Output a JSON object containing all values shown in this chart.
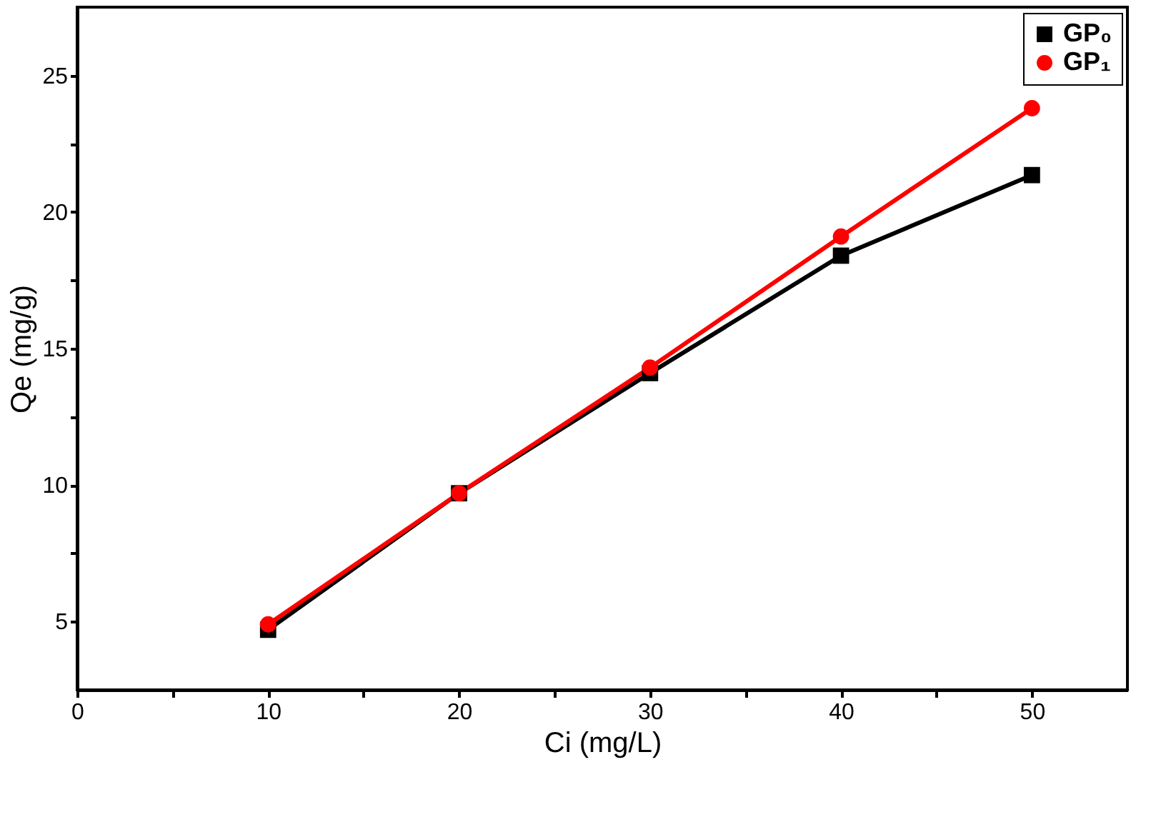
{
  "chart_data": {
    "type": "line",
    "xlabel": "Ci (mg/L)",
    "ylabel": "Qe (mg/g)",
    "x": [
      10,
      20,
      30,
      40,
      50
    ],
    "series": [
      {
        "name": "GP₀",
        "color": "#000000",
        "marker": "square",
        "values": [
          4.7,
          9.7,
          14.1,
          18.4,
          21.35
        ]
      },
      {
        "name": "GP₁",
        "color": "#ff0000",
        "marker": "circle",
        "values": [
          4.9,
          9.7,
          14.3,
          19.1,
          23.8
        ]
      }
    ],
    "xlim": [
      0,
      55
    ],
    "xticks": [
      0,
      {
        "value": 5,
        "label": null
      },
      10,
      {
        "value": 15,
        "label": null
      },
      20,
      {
        "value": 25,
        "label": null
      },
      30,
      {
        "value": 35,
        "label": null
      },
      40,
      {
        "value": 45,
        "label": null
      },
      50
    ],
    "ylim": [
      2.5,
      27.5
    ],
    "yticks": [
      5,
      {
        "value": 7.5,
        "label": null
      },
      10,
      {
        "value": 12.5,
        "label": null
      },
      15,
      {
        "value": 17.5,
        "label": null
      },
      20,
      {
        "value": 22.5,
        "label": null
      },
      25
    ],
    "grid": false,
    "legend": "top right",
    "line_style": "solid"
  }
}
